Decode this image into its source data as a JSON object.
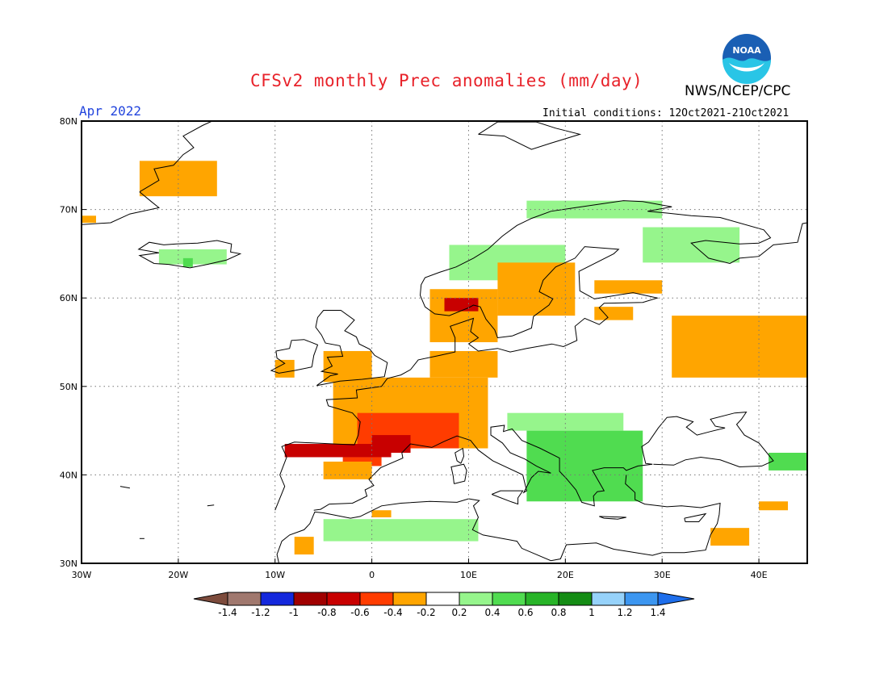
{
  "header": {
    "title": "CFSv2 monthly Prec anomalies (mm/day)",
    "agency": "NWS/NCEP/CPC",
    "month": "Apr 2022",
    "initial_conditions": "Initial conditions: 12Oct2021-21Oct2021",
    "logo_text": "NOAA"
  },
  "map": {
    "lat_range": [
      30,
      80
    ],
    "lon_range": [
      -30,
      45
    ],
    "lat_labels": [
      {
        "lat": 80,
        "text": "80N"
      },
      {
        "lat": 70,
        "text": "70N"
      },
      {
        "lat": 60,
        "text": "60N"
      },
      {
        "lat": 50,
        "text": "50N"
      },
      {
        "lat": 40,
        "text": "40N"
      },
      {
        "lat": 30,
        "text": "30N"
      }
    ],
    "lon_labels": [
      {
        "lon": -30,
        "text": "30W"
      },
      {
        "lon": -20,
        "text": "20W"
      },
      {
        "lon": -10,
        "text": "10W"
      },
      {
        "lon": 0,
        "text": "0"
      },
      {
        "lon": 10,
        "text": "10E"
      },
      {
        "lon": 20,
        "text": "20E"
      },
      {
        "lon": 30,
        "text": "30E"
      },
      {
        "lon": 40,
        "text": "40E"
      }
    ],
    "anomaly_regions": [
      {
        "bins": -0.3,
        "color": "#ffa500",
        "lon": [
          -24,
          -16
        ],
        "lat": [
          71.5,
          75.5
        ]
      },
      {
        "bins": -0.3,
        "color": "#ffa500",
        "lon": [
          -30,
          -28.5
        ],
        "lat": [
          68.5,
          69.3
        ]
      },
      {
        "bins": 0.3,
        "color": "#96f58c",
        "lon": [
          -22,
          -15
        ],
        "lat": [
          63.8,
          65.5
        ]
      },
      {
        "bins": 0.5,
        "color": "#50dc50",
        "lon": [
          -19.5,
          -18.5
        ],
        "lat": [
          63.5,
          64.5
        ]
      },
      {
        "bins": 0.3,
        "color": "#96f58c",
        "lon": [
          8,
          20
        ],
        "lat": [
          62,
          66
        ]
      },
      {
        "bins": 0.3,
        "color": "#96f58c",
        "lon": [
          16,
          30
        ],
        "lat": [
          69,
          71
        ]
      },
      {
        "bins": -0.3,
        "color": "#ffa500",
        "lon": [
          13,
          21
        ],
        "lat": [
          58,
          64
        ]
      },
      {
        "bins": -0.3,
        "color": "#ffa500",
        "lon": [
          6,
          13
        ],
        "lat": [
          55,
          61
        ]
      },
      {
        "bins": -0.7,
        "color": "#c80000",
        "lon": [
          7.5,
          11
        ],
        "lat": [
          58.5,
          60
        ]
      },
      {
        "bins": -0.3,
        "color": "#ffa500",
        "lon": [
          23,
          30
        ],
        "lat": [
          60.5,
          62
        ]
      },
      {
        "bins": -0.3,
        "color": "#ffa500",
        "lon": [
          23,
          27
        ],
        "lat": [
          57.5,
          59
        ]
      },
      {
        "bins": 0.3,
        "color": "#96f58c",
        "lon": [
          28,
          38
        ],
        "lat": [
          64,
          68
        ]
      },
      {
        "bins": -0.3,
        "color": "#ffa500",
        "lon": [
          31,
          45
        ],
        "lat": [
          51,
          58
        ]
      },
      {
        "bins": -0.3,
        "color": "#ffa500",
        "lon": [
          -5,
          0
        ],
        "lat": [
          50.5,
          54
        ]
      },
      {
        "bins": -0.3,
        "color": "#ffa500",
        "lon": [
          -10,
          -8
        ],
        "lat": [
          51,
          53
        ]
      },
      {
        "bins": -0.3,
        "color": "#ffa500",
        "lon": [
          6,
          13
        ],
        "lat": [
          51,
          54
        ]
      },
      {
        "bins": -0.3,
        "color": "#ffa500",
        "lon": [
          -4,
          12
        ],
        "lat": [
          43,
          51
        ]
      },
      {
        "bins": -0.5,
        "color": "#ff3c00",
        "lon": [
          -1.5,
          9
        ],
        "lat": [
          43,
          47
        ]
      },
      {
        "bins": -0.7,
        "color": "#c80000",
        "lon": [
          0,
          4
        ],
        "lat": [
          42.5,
          44.5
        ]
      },
      {
        "bins": -0.7,
        "color": "#c80000",
        "lon": [
          -9,
          2
        ],
        "lat": [
          42,
          43.5
        ]
      },
      {
        "bins": -0.5,
        "color": "#ff3c00",
        "lon": [
          -3,
          1
        ],
        "lat": [
          41,
          42
        ]
      },
      {
        "bins": -0.3,
        "color": "#ffa500",
        "lon": [
          -5,
          0
        ],
        "lat": [
          39.5,
          41.5
        ]
      },
      {
        "bins": 0.5,
        "color": "#50dc50",
        "lon": [
          16,
          28
        ],
        "lat": [
          37,
          45
        ]
      },
      {
        "bins": 0.3,
        "color": "#96f58c",
        "lon": [
          14,
          26
        ],
        "lat": [
          45,
          47
        ]
      },
      {
        "bins": 0.5,
        "color": "#50dc50",
        "lon": [
          41,
          45
        ],
        "lat": [
          40.5,
          42.5
        ]
      },
      {
        "bins": 0.3,
        "color": "#96f58c",
        "lon": [
          -5,
          11
        ],
        "lat": [
          32.5,
          35
        ]
      },
      {
        "bins": -0.3,
        "color": "#ffa500",
        "lon": 0,
        "lat": [
          35.2,
          36
        ]
      },
      {
        "bins": -0.3,
        "color": "#ffa500",
        "lon": [
          -8,
          -6
        ],
        "lat": [
          31,
          33
        ]
      },
      {
        "bins": -0.3,
        "color": "#ffa500",
        "lon": [
          35,
          39
        ],
        "lat": [
          32,
          34
        ]
      },
      {
        "bins": -0.3,
        "color": "#ffa500",
        "lon": [
          40,
          43
        ],
        "lat": [
          36,
          37
        ]
      }
    ]
  },
  "colorbar": {
    "colors": [
      "#7d4b3c",
      "#a0786e",
      "#1428dc",
      "#a00000",
      "#c80000",
      "#ff3c00",
      "#ffa500",
      "#ffffff",
      "#96f58c",
      "#50dc50",
      "#28b428",
      "#148c14",
      "#96d2fa",
      "#3c96f0",
      "#1e6eeb"
    ],
    "labels": [
      "-1.4",
      "-1.2",
      "-1",
      "-0.8",
      "-0.6",
      "-0.4",
      "-0.2",
      "0.2",
      "0.4",
      "0.6",
      "0.8",
      "1",
      "1.2",
      "1.4"
    ]
  }
}
